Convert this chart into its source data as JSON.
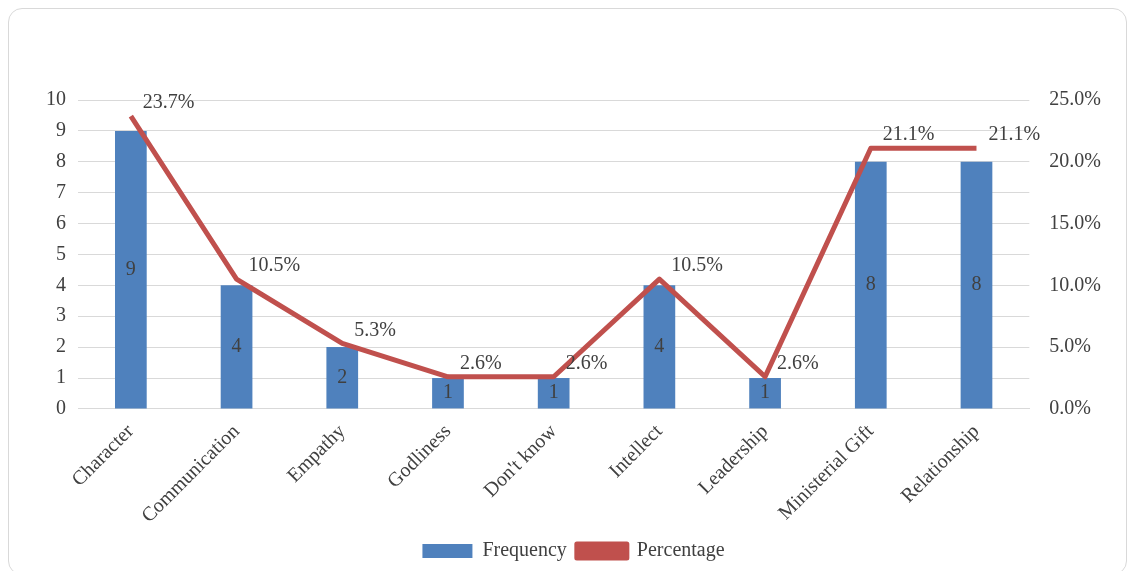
{
  "chart_data": {
    "type": "bar",
    "categories": [
      "Character",
      "Communication",
      "Empathy",
      "Godliness",
      "Don't know",
      "Intellect",
      "Leadership",
      "Ministerial Gift",
      "Relationship"
    ],
    "series": [
      {
        "name": "Frequency",
        "color": "#4f81bd",
        "values": [
          9,
          4,
          2,
          1,
          1,
          4,
          1,
          8,
          8
        ],
        "value_labels": [
          "9",
          "4",
          "2",
          "1",
          "1",
          "4",
          "1",
          "8",
          "8"
        ]
      },
      {
        "name": "Percentage",
        "type": "line",
        "axis": "y2",
        "color": "#c0504d",
        "marker": "none",
        "values": [
          23.7,
          10.5,
          5.3,
          2.6,
          2.6,
          10.5,
          2.6,
          21.1,
          21.1
        ],
        "value_labels": [
          "23.7%",
          "10.5%",
          "5.3%",
          "2.6%",
          "2.6%",
          "10.5%",
          "2.6%",
          "21.1%",
          "21.1%"
        ]
      }
    ],
    "ylim": [
      0,
      10
    ],
    "yticks": [
      0,
      1,
      2,
      3,
      4,
      5,
      6,
      7,
      8,
      9,
      10
    ],
    "y2lim": [
      0,
      25
    ],
    "y2ticks": [
      {
        "value": 0,
        "label": "0.0%"
      },
      {
        "value": 5,
        "label": "5.0%"
      },
      {
        "value": 10,
        "label": "10.0%"
      },
      {
        "value": 15,
        "label": "15.0%"
      },
      {
        "value": 20,
        "label": "20.0%"
      },
      {
        "value": 25,
        "label": "25.0%"
      }
    ],
    "grid": "y",
    "legend": "bottom"
  }
}
